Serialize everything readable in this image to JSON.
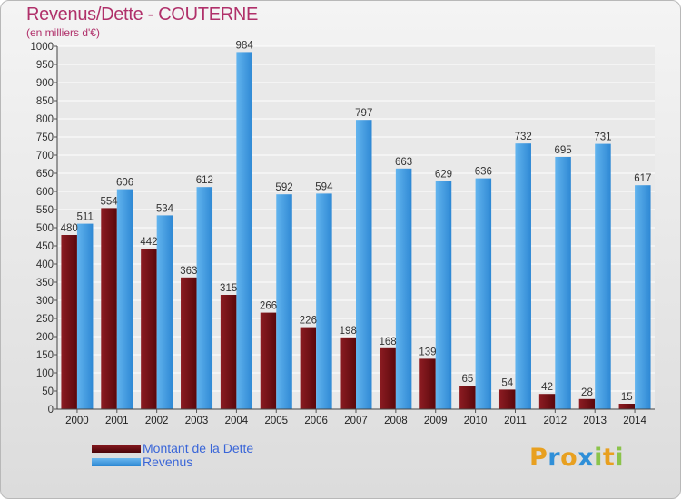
{
  "header": {
    "title": "Revenus/Dette - COUTERNE",
    "subtitle": "(en milliers d'€)"
  },
  "legend": {
    "dette_label": "Montant de la Dette",
    "revenus_label": "Revenus"
  },
  "logo": {
    "letters": [
      "P",
      "r",
      "o",
      "x",
      "i",
      "t",
      "i"
    ],
    "colors": [
      "#e8a020",
      "#2f8fd8",
      "#e8a020",
      "#2f8fd8",
      "#8bc34a",
      "#e8a020",
      "#8bc34a"
    ]
  },
  "colors": {
    "dette": "#6e0f14",
    "revenus": "#3a9ae6",
    "title": "#b0306a",
    "legend_text": "#3a66d8"
  },
  "chart_data": {
    "type": "bar",
    "title": "Revenus/Dette - COUTERNE",
    "ylabel": "(en milliers d'€)",
    "categories": [
      "2000",
      "2001",
      "2002",
      "2003",
      "2004",
      "2005",
      "2006",
      "2007",
      "2008",
      "2009",
      "2010",
      "2011",
      "2012",
      "2013",
      "2014"
    ],
    "series": [
      {
        "name": "Montant de la Dette",
        "values": [
          480,
          554,
          442,
          363,
          315,
          266,
          226,
          198,
          168,
          139,
          65,
          54,
          42,
          28,
          15
        ]
      },
      {
        "name": "Revenus",
        "values": [
          511,
          606,
          534,
          612,
          984,
          592,
          594,
          797,
          663,
          629,
          636,
          732,
          695,
          731,
          617
        ]
      }
    ],
    "ylim": [
      0,
      1000
    ],
    "yticks": [
      0,
      50,
      100,
      150,
      200,
      250,
      300,
      350,
      400,
      450,
      500,
      550,
      600,
      650,
      700,
      750,
      800,
      850,
      900,
      950,
      1000
    ],
    "grid": true,
    "legend_position": "bottom-left"
  }
}
